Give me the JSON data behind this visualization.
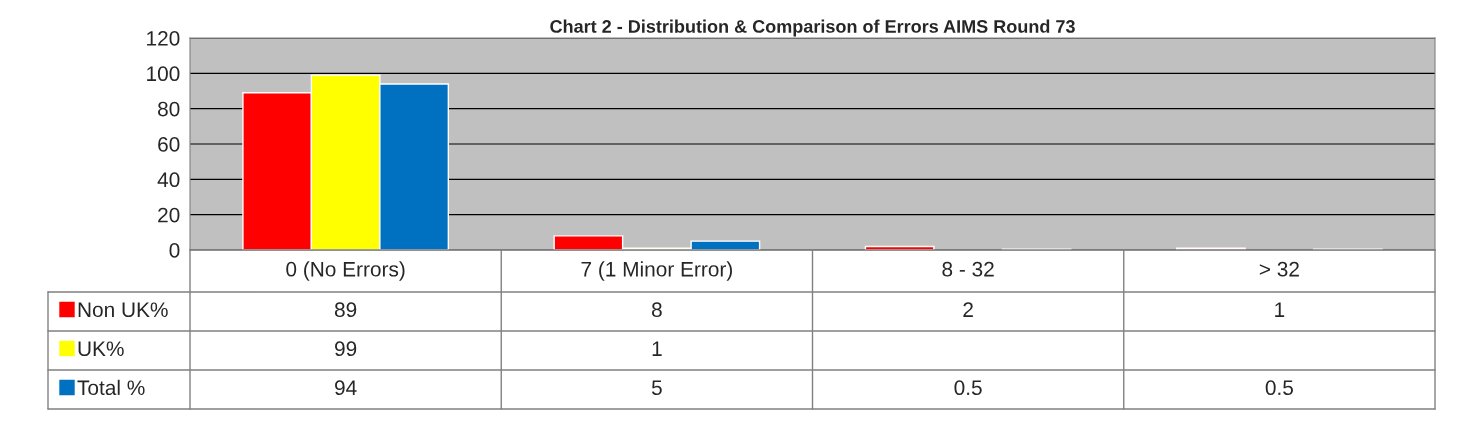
{
  "chart_data": {
    "type": "bar",
    "title": "Chart 2 - Distribution & Comparison of Errors AIMS Round 73",
    "categories": [
      "0 (No Errors)",
      "7 (1 Minor Error)",
      "8 - 32",
      "> 32"
    ],
    "series": [
      {
        "name": "Non UK%",
        "color": "#ff0000",
        "values": [
          89,
          8,
          2,
          1
        ]
      },
      {
        "name": "UK%",
        "color": "#ffff00",
        "values": [
          99,
          1,
          null,
          null
        ]
      },
      {
        "name": "Total %",
        "color": "#0070c0",
        "values": [
          94,
          5,
          0.5,
          0.5
        ]
      }
    ],
    "ylim": [
      0,
      120
    ],
    "yticks": [
      0,
      20,
      40,
      60,
      80,
      100,
      120
    ],
    "grid": "y",
    "legend": "bottom left",
    "data_labels": true
  }
}
